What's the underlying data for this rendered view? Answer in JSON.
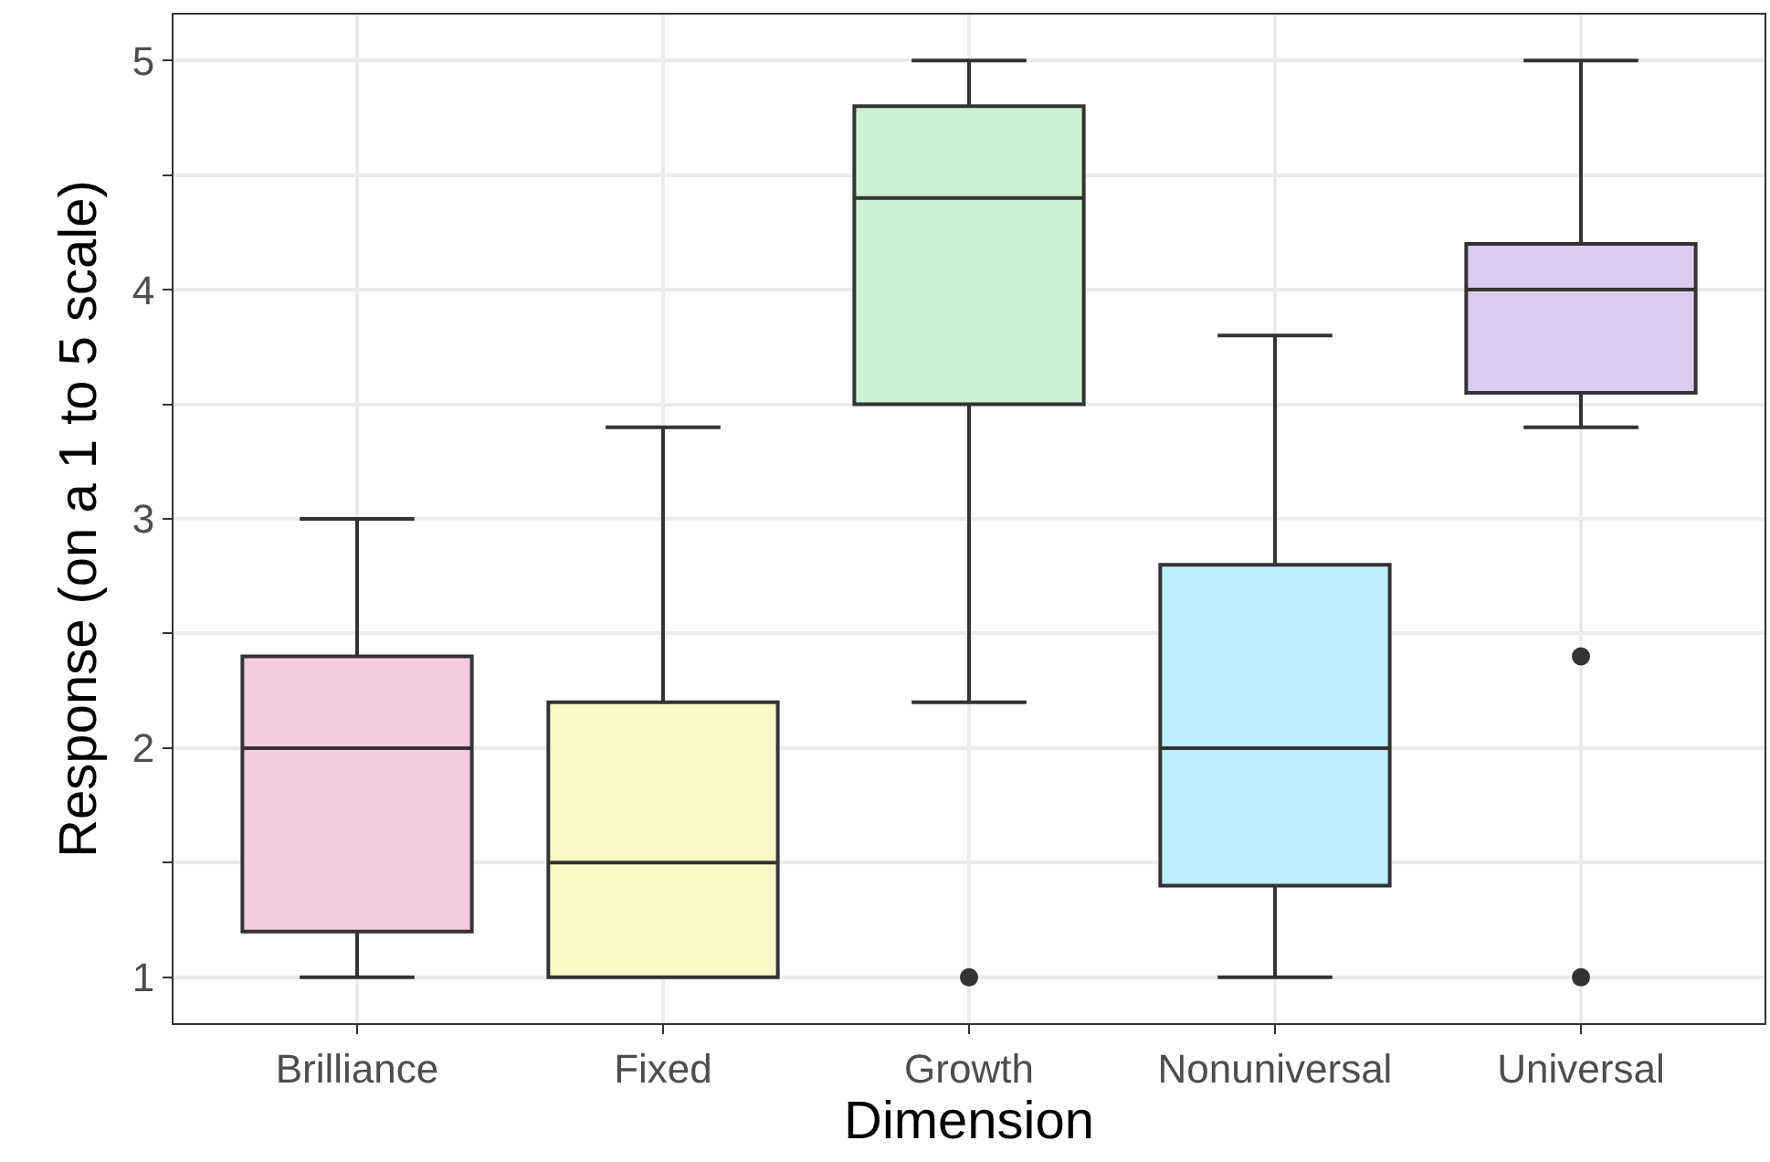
{
  "chart_data": {
    "type": "box",
    "xlabel": "Dimension",
    "ylabel": "Response (on a 1 to 5 scale)",
    "categories": [
      "Brilliance",
      "Fixed",
      "Growth",
      "Nonuniversal",
      "Universal"
    ],
    "colors": [
      "#f4cadf",
      "#fafac8",
      "#cdf0d2",
      "#bdeeff",
      "#dccbf0"
    ],
    "boxes": [
      {
        "low": 1,
        "q1": 1.2,
        "median": 2,
        "q3": 2.4,
        "high": 3
      },
      {
        "low": 1,
        "q1": 1,
        "median": 1.5,
        "q3": 2.2,
        "high": 3.4
      },
      {
        "low": 2.2,
        "q1": 3.5,
        "median": 4.4,
        "q3": 4.8,
        "high": 5,
        "outliers": [
          1
        ]
      },
      {
        "low": 1,
        "q1": 1.4,
        "median": 2,
        "q3": 2.8,
        "high": 3.8
      },
      {
        "low": 3.4,
        "q1": 3.55,
        "median": 4,
        "q3": 4.2,
        "high": 5,
        "outliers": [
          2.4,
          1
        ]
      }
    ],
    "ylim": [
      0.8,
      5.2
    ],
    "yticks": [
      1,
      {
        "value": 1.5,
        "label": null
      },
      2,
      {
        "value": 2.5,
        "label": null
      },
      3,
      {
        "value": 3.5,
        "label": null
      },
      4,
      {
        "value": 4.5,
        "label": null
      },
      5
    ],
    "grid": true,
    "legend": false
  }
}
